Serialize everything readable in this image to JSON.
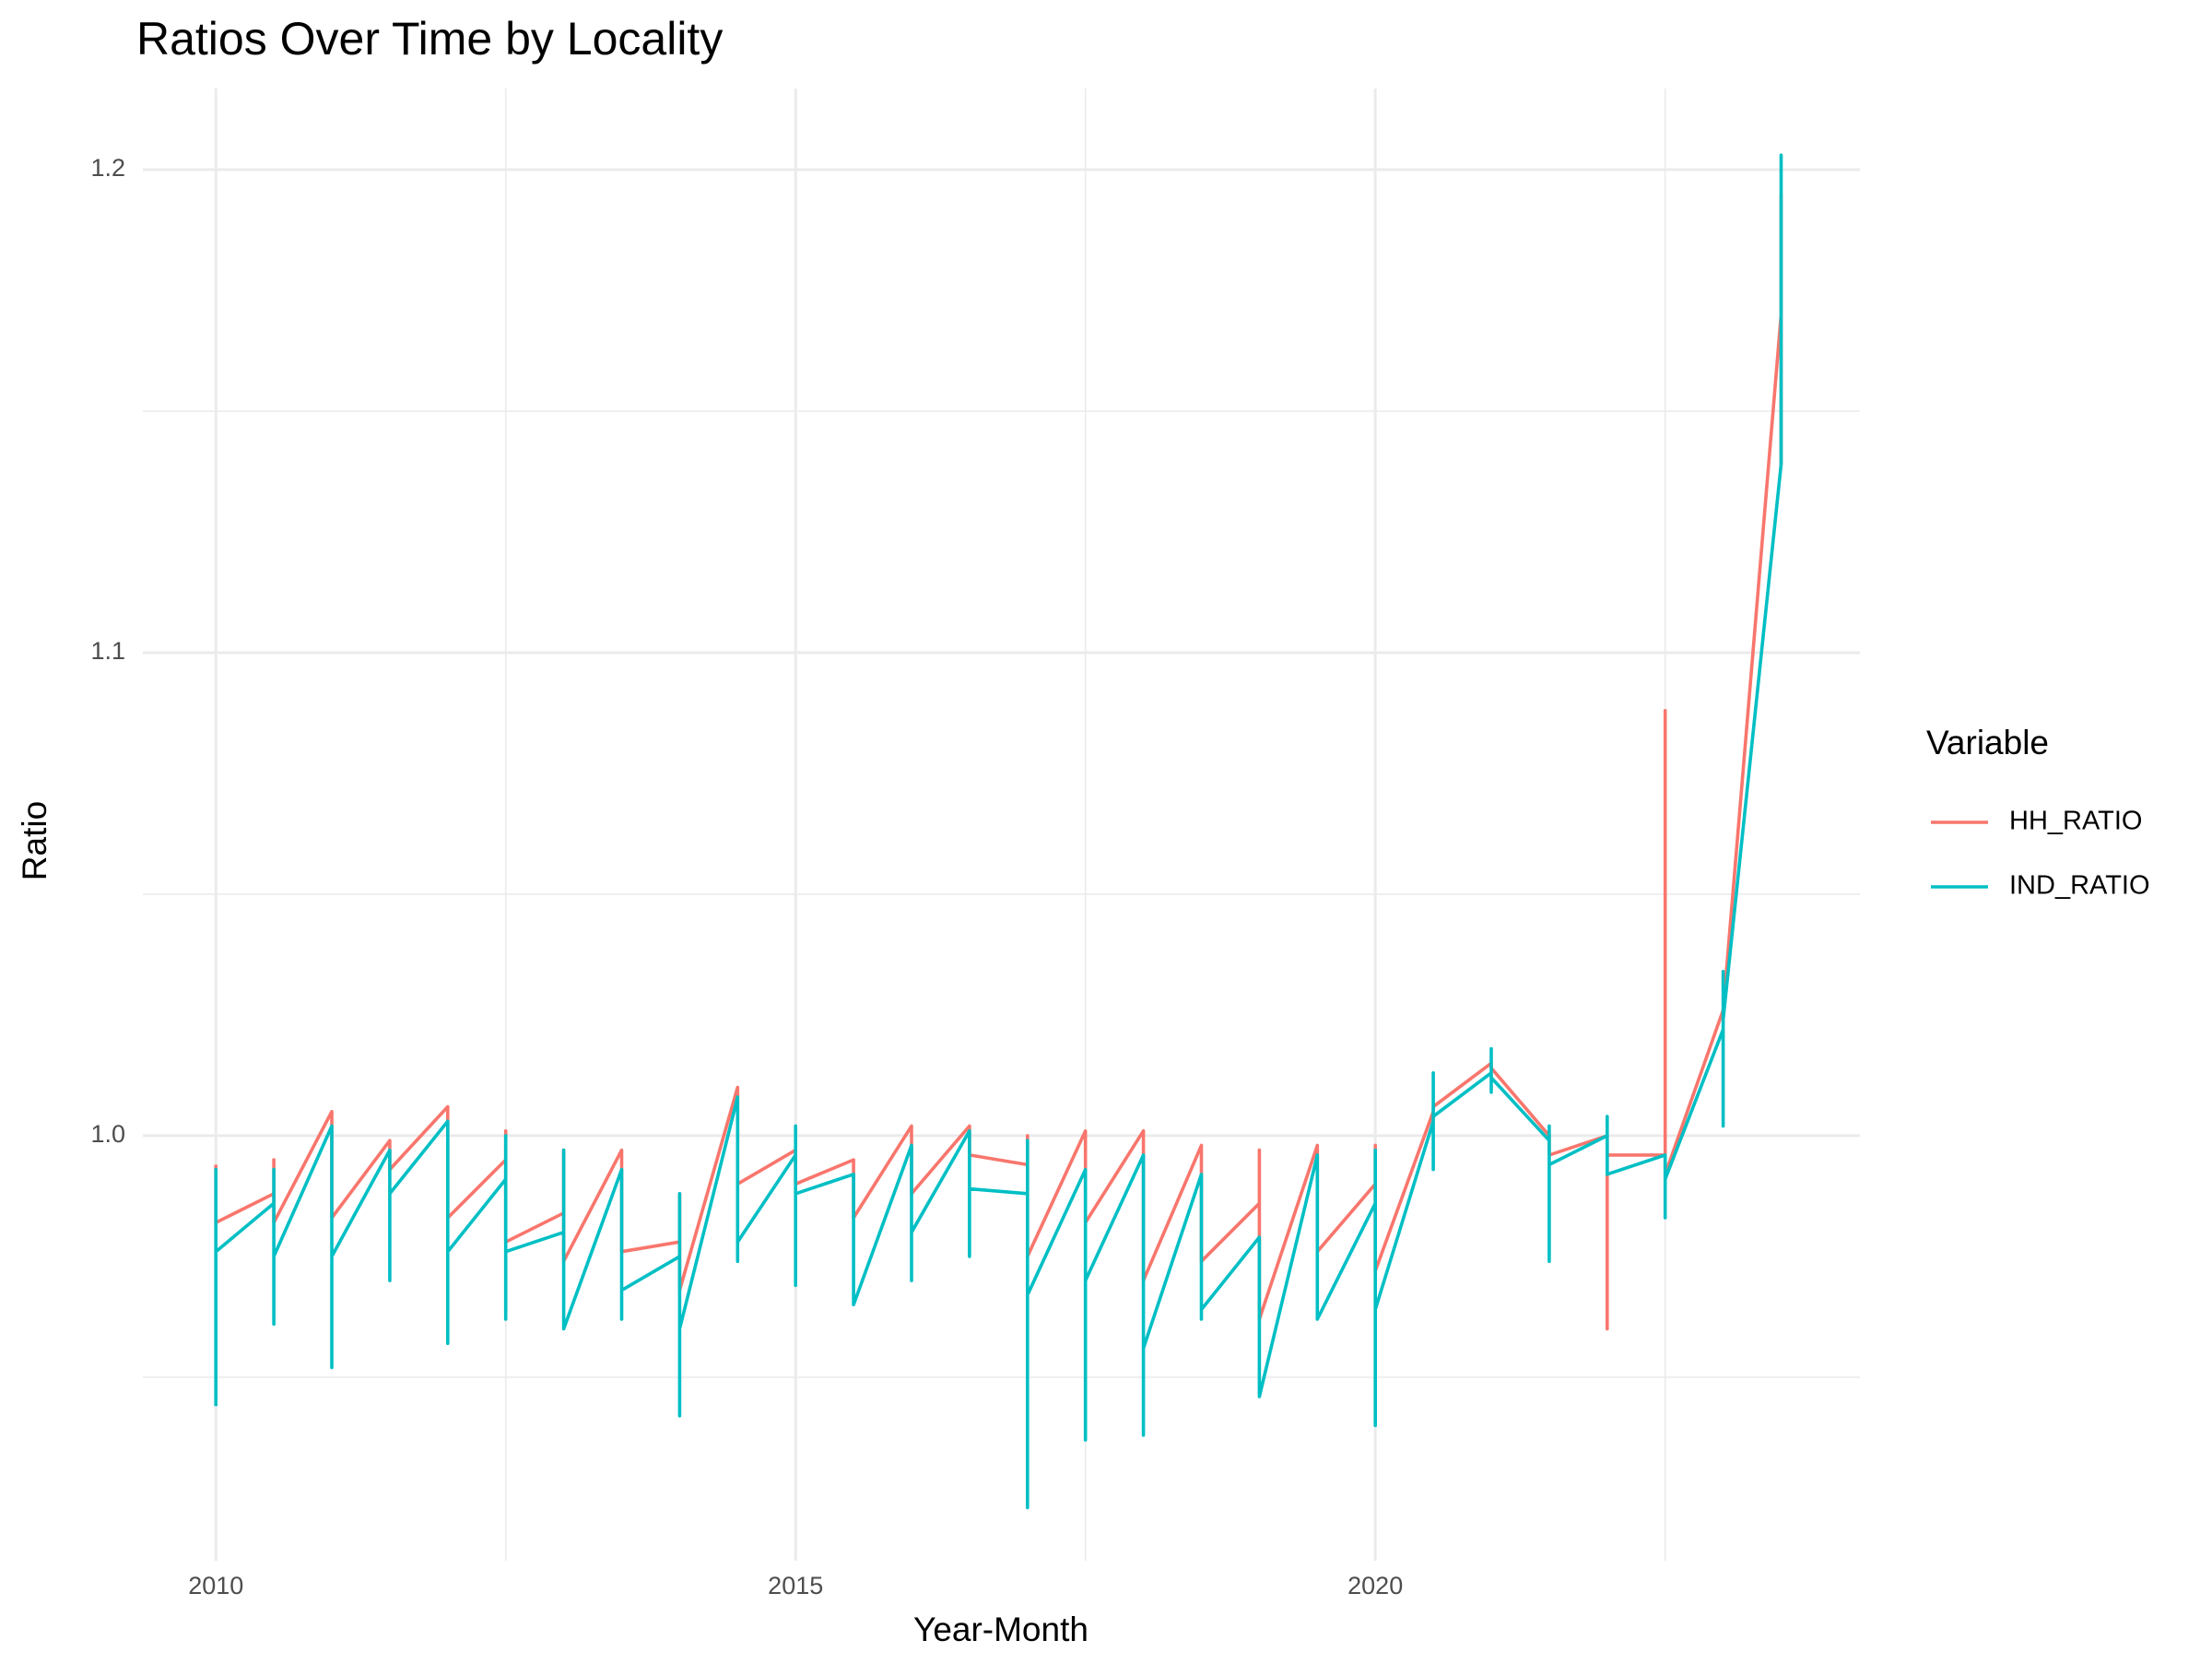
{
  "chart_data": {
    "type": "line",
    "title": "Ratios Over Time by Locality",
    "x_label": "Year-Month",
    "y_label": "Ratio",
    "legend_title": "Variable",
    "legend_position": "right",
    "grid": true,
    "xlim": [
      2009.37,
      2024.18
    ],
    "ylim": [
      0.912,
      1.2168
    ],
    "xticks": [
      2010,
      2015,
      2020
    ],
    "x_minor_ticks": [
      2012.5,
      2017.5,
      2022.5
    ],
    "yticks": [
      {
        "value": 1,
        "label": "1.0"
      },
      1.1,
      1.2
    ],
    "y_minor_ticks": [
      0.95,
      1.05,
      1.15
    ],
    "series": [
      {
        "name": "HH_RATIO",
        "color": "#F8766D",
        "x": [
          2010,
          2010,
          2010.5,
          2010.5,
          2010.5,
          2011,
          2011,
          2011.5,
          2011.5,
          2012,
          2012,
          2012.5,
          2012.5,
          2012.5,
          2013,
          2013,
          2013,
          2013.5,
          2013.5,
          2014,
          2014,
          2014,
          2014.5,
          2014.5,
          2015,
          2015,
          2015.5,
          2015.5,
          2016,
          2016,
          2016.5,
          2016.5,
          2017,
          2017,
          2017,
          2017.5,
          2017.5,
          2018,
          2018,
          2018.5,
          2018.5,
          2019,
          2019,
          2019,
          2019.5,
          2019.5,
          2020,
          2020,
          2020,
          2020.5,
          2020.5,
          2021,
          2021,
          2021.5,
          2021.5,
          2022,
          2022,
          2022,
          2022.5,
          2022.5,
          2022.5,
          2023,
          2023,
          2023.5,
          2023.5,
          2023.5
        ],
        "values": [
          0.994,
          0.982,
          0.988,
          0.995,
          0.982,
          1.005,
          0.983,
          0.999,
          0.993,
          1.006,
          0.983,
          0.995,
          1.001,
          0.978,
          0.984,
          0.997,
          0.974,
          0.997,
          0.976,
          0.978,
          0.988,
          0.968,
          1.01,
          0.99,
          0.997,
          0.99,
          0.995,
          0.983,
          1.002,
          0.988,
          1.002,
          0.996,
          0.994,
          1.0,
          0.975,
          1.001,
          0.982,
          1.001,
          0.97,
          0.998,
          0.974,
          0.986,
          0.997,
          0.962,
          0.998,
          0.976,
          0.99,
          0.998,
          0.972,
          1.005,
          1.006,
          1.015,
          1.014,
          1.0,
          0.996,
          1.0,
          0.96,
          0.996,
          0.996,
          1.088,
          0.992,
          1.026,
          1.026,
          1.17,
          1.139,
          1.195
        ]
      },
      {
        "name": "IND_RATIO",
        "color": "#00BFC4",
        "x": [
          2010,
          2010,
          2010,
          2010.5,
          2010.5,
          2010.5,
          2010.5,
          2011,
          2011,
          2011,
          2011.5,
          2011.5,
          2011.5,
          2012,
          2012,
          2012,
          2012.5,
          2012.5,
          2012.5,
          2012.5,
          2013,
          2013,
          2013,
          2013.5,
          2013.5,
          2013.5,
          2014,
          2014,
          2014,
          2014,
          2014.5,
          2014.5,
          2014.5,
          2015,
          2015,
          2015,
          2015,
          2015.5,
          2015.5,
          2016,
          2016,
          2016,
          2016.5,
          2016.5,
          2016.5,
          2017,
          2017,
          2017,
          2017,
          2017.5,
          2017.5,
          2017.5,
          2018,
          2018,
          2018,
          2018.5,
          2018.5,
          2018.5,
          2019,
          2019,
          2019.5,
          2019.5,
          2020,
          2020,
          2020,
          2020,
          2020.5,
          2020.5,
          2020.5,
          2020.5,
          2021,
          2021,
          2021,
          2021,
          2021.5,
          2021.5,
          2021.5,
          2021.5,
          2022,
          2022,
          2022,
          2022.5,
          2022.5,
          2022.5,
          2023,
          2023,
          2023,
          2023,
          2023.5,
          2023.5,
          2023.5
        ],
        "values": [
          0.944,
          0.993,
          0.976,
          0.986,
          0.961,
          0.993,
          0.975,
          1.002,
          0.952,
          0.975,
          0.997,
          0.97,
          0.988,
          1.003,
          0.957,
          0.976,
          0.991,
          0.962,
          1.0,
          0.976,
          0.98,
          0.997,
          0.96,
          0.993,
          0.962,
          0.968,
          0.975,
          0.988,
          0.942,
          0.96,
          1.008,
          0.974,
          0.978,
          0.996,
          1.002,
          0.969,
          0.988,
          0.992,
          0.965,
          0.998,
          0.97,
          0.98,
          1.001,
          0.975,
          0.989,
          0.988,
          0.999,
          0.923,
          0.967,
          0.993,
          0.937,
          0.97,
          0.996,
          0.938,
          0.956,
          0.992,
          0.962,
          0.964,
          0.979,
          0.946,
          0.996,
          0.962,
          0.986,
          0.997,
          0.94,
          0.964,
          1.003,
          0.993,
          1.013,
          1.004,
          1.013,
          1.009,
          1.018,
          1.012,
          0.999,
          0.974,
          1.002,
          0.994,
          1.0,
          1.004,
          0.992,
          0.996,
          0.983,
          0.991,
          1.022,
          1.002,
          1.034,
          1.024,
          1.139,
          1.203,
          1.18
        ]
      }
    ]
  }
}
